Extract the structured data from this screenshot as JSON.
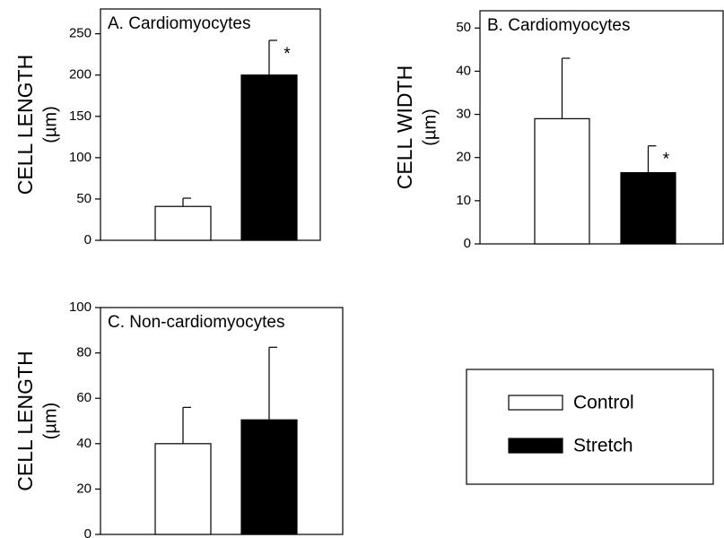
{
  "chart_data": [
    {
      "type": "bar",
      "title": "A. Cardiomyocytes",
      "ylabel": "CELL LENGTH",
      "ylabel_unit": "(µm)",
      "ylim": [
        0,
        280
      ],
      "yticks": [
        0,
        50,
        100,
        150,
        200,
        250
      ],
      "series": [
        {
          "name": "Control",
          "color": "#ffffff",
          "values": [
            41
          ],
          "errors": [
            10
          ]
        },
        {
          "name": "Stretch",
          "color": "#000000",
          "values": [
            200
          ],
          "errors": [
            42
          ],
          "annotation": "*"
        }
      ]
    },
    {
      "type": "bar",
      "title": "B. Cardiomyocytes",
      "ylabel": "CELL WIDTH",
      "ylabel_unit": "(µm)",
      "ylim": [
        0,
        54
      ],
      "yticks": [
        0,
        10,
        20,
        30,
        40,
        50
      ],
      "series": [
        {
          "name": "Control",
          "color": "#ffffff",
          "values": [
            29
          ],
          "errors": [
            14
          ]
        },
        {
          "name": "Stretch",
          "color": "#000000",
          "values": [
            16.5
          ],
          "errors": [
            6.2
          ],
          "annotation": "*"
        }
      ]
    },
    {
      "type": "bar",
      "title": "C. Non-cardiomyocytes",
      "ylabel": "CELL LENGTH",
      "ylabel_unit": "(µm)",
      "ylim": [
        0,
        100
      ],
      "yticks": [
        0,
        20,
        40,
        60,
        80,
        100
      ],
      "series": [
        {
          "name": "Control",
          "color": "#ffffff",
          "values": [
            40
          ],
          "errors": [
            16
          ]
        },
        {
          "name": "Stretch",
          "color": "#000000",
          "values": [
            50.5
          ],
          "errors": [
            32
          ]
        }
      ]
    }
  ]
}
